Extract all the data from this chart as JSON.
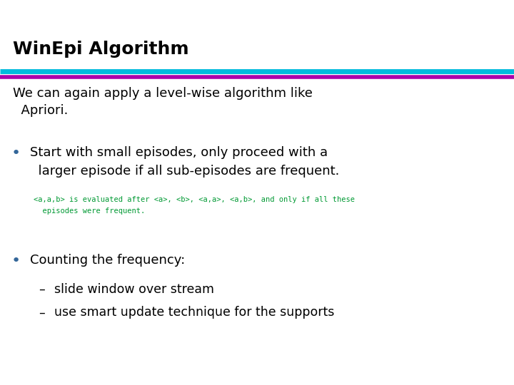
{
  "title": "WinEpi Algorithm",
  "line1_color": "#00BBDD",
  "line2_color": "#AA00AA",
  "bg_color": "#FFFFFF",
  "title_color": "#000000",
  "title_fontsize": 18,
  "body_color": "#000000",
  "body_fontsize": 13,
  "bullet_color": "#336699",
  "code_color": "#009933",
  "code_fontsize": 7.5,
  "sub_fontsize": 12.5,
  "intro_text": "We can again apply a level-wise algorithm like\n  Apriori.",
  "bullet1_text": "Start with small episodes, only proceed with a\n  larger episode if all sub-episodes are frequent.",
  "code_line1": "<a,a,b> is evaluated after <a>, <b>, <a,a>, <a,b>, and only if all these",
  "code_line2": "  episodes were frequent.",
  "bullet2_text": "Counting the frequency:",
  "sub1_text": "slide window over stream",
  "sub2_text": "use smart update technique for the supports"
}
